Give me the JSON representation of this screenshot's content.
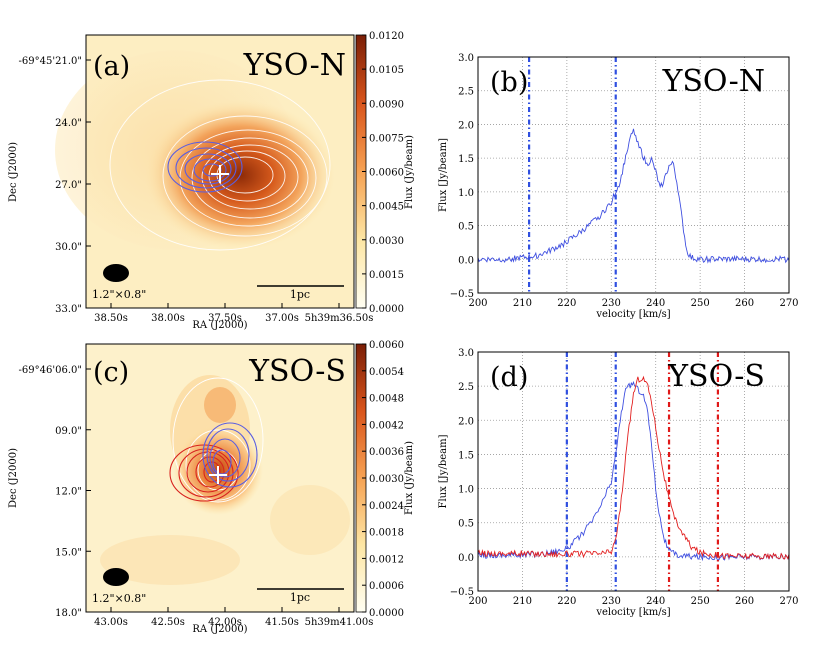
{
  "chart_data": [
    {
      "type": "heatmap",
      "panel": "(a)",
      "label": "YSO-N",
      "colorbar": {
        "label": "Flux (Jy/beam)",
        "ticks": [
          "0.0000",
          "0.0015",
          "0.0030",
          "0.0045",
          "0.0060",
          "0.0075",
          "0.0090",
          "0.0105",
          "0.0120"
        ]
      },
      "xlabel": "RA (J2000)",
      "ylabel": "Dec (J2000)",
      "xticks": [
        "38.50s",
        "38.00s",
        "37.50s",
        "37.00s",
        "5h39m36.50s"
      ],
      "yticks": [
        "-69°45'21.0\"",
        "24.0\"",
        "27.0\"",
        "30.0\"",
        "33.0\""
      ],
      "beam": "1.2\"×0.8\"",
      "scalebar": "1pc"
    },
    {
      "type": "line",
      "panel": "(b)",
      "label": "YSO-N",
      "xlabel": "velocity [km/s]",
      "ylabel": "Flux [Jy/beam]",
      "xlim": [
        200,
        270
      ],
      "ylim": [
        -0.5,
        3.0
      ],
      "xticks": [
        "200",
        "210",
        "220",
        "230",
        "240",
        "250",
        "260",
        "270"
      ],
      "yticks": [
        "-0.5",
        "0.0",
        "0.5",
        "1.0",
        "1.5",
        "2.0",
        "2.5",
        "3.0"
      ],
      "series": [
        {
          "name": "blue",
          "color": "#3f4fe0",
          "x": [
            200,
            205,
            210,
            213,
            216,
            219,
            222,
            225,
            228,
            230,
            232,
            233,
            234,
            235,
            236,
            237,
            238,
            239,
            240,
            241,
            242,
            243,
            244,
            245,
            246,
            247,
            248,
            250,
            255,
            260,
            265,
            270
          ],
          "y": [
            0.0,
            0.0,
            0.02,
            0.05,
            0.12,
            0.22,
            0.35,
            0.5,
            0.68,
            0.85,
            1.15,
            1.45,
            1.75,
            1.9,
            1.75,
            1.55,
            1.4,
            1.48,
            1.3,
            1.05,
            1.2,
            1.38,
            1.42,
            1.05,
            0.55,
            0.12,
            0.02,
            0.0,
            0.0,
            0.0,
            0.0,
            0.0
          ]
        }
      ],
      "vlines": [
        {
          "x": 211.5,
          "color": "#2f4fe0"
        },
        {
          "x": 231,
          "color": "#2f4fe0"
        }
      ]
    },
    {
      "type": "heatmap",
      "panel": "(c)",
      "label": "YSO-S",
      "colorbar": {
        "label": "Flux (Jy/beam)",
        "ticks": [
          "0.0000",
          "0.0006",
          "0.0012",
          "0.0018",
          "0.0024",
          "0.0030",
          "0.0036",
          "0.0042",
          "0.0048",
          "0.0054",
          "0.0060"
        ]
      },
      "xlabel": "RA (J2000)",
      "ylabel": "Dec (J2000)",
      "xticks": [
        "43.00s",
        "42.50s",
        "42.00s",
        "41.50s",
        "5h39m41.00s"
      ],
      "yticks": [
        "-69°46'06.0\"",
        "09.0\"",
        "12.0\"",
        "15.0\"",
        "18.0\""
      ],
      "beam": "1.2\"×0.8\"",
      "scalebar": "1pc"
    },
    {
      "type": "line",
      "panel": "(d)",
      "label": "YSO-S",
      "xlabel": "velocity [km/s]",
      "ylabel": "Flux [Jy/beam]",
      "xlim": [
        200,
        270
      ],
      "ylim": [
        -0.5,
        3.0
      ],
      "xticks": [
        "200",
        "210",
        "220",
        "230",
        "240",
        "250",
        "260",
        "270"
      ],
      "yticks": [
        "-0.5",
        "0.0",
        "0.5",
        "1.0",
        "1.5",
        "2.0",
        "2.5",
        "3.0"
      ],
      "series": [
        {
          "name": "blue",
          "color": "#3f4fe0",
          "x": [
            200,
            210,
            215,
            220,
            223,
            226,
            228,
            230,
            231,
            232,
            233,
            234,
            235,
            236,
            237,
            238,
            239,
            240,
            241,
            242,
            243,
            245,
            250,
            260,
            270
          ],
          "y": [
            0.02,
            0.03,
            0.05,
            0.12,
            0.3,
            0.55,
            0.8,
            1.1,
            1.5,
            2.0,
            2.4,
            2.5,
            2.55,
            2.45,
            2.4,
            2.2,
            1.7,
            1.0,
            0.55,
            0.25,
            0.08,
            0.02,
            0.0,
            0.0,
            0.0
          ]
        },
        {
          "name": "red",
          "color": "#e22020",
          "x": [
            200,
            210,
            220,
            228,
            230,
            231,
            232,
            233,
            234,
            235,
            236,
            237,
            238,
            239,
            240,
            241,
            242,
            243,
            244,
            246,
            248,
            250,
            255,
            260,
            270
          ],
          "y": [
            0.05,
            0.05,
            0.04,
            0.05,
            0.08,
            0.25,
            0.7,
            1.3,
            1.9,
            2.4,
            2.6,
            2.62,
            2.55,
            2.3,
            1.9,
            1.5,
            1.15,
            0.85,
            0.6,
            0.35,
            0.15,
            0.06,
            0.02,
            0.01,
            0.0
          ]
        }
      ],
      "vlines": [
        {
          "x": 220,
          "color": "#2f4fe0"
        },
        {
          "x": 231,
          "color": "#2f4fe0"
        },
        {
          "x": 243,
          "color": "#e01818"
        },
        {
          "x": 254,
          "color": "#e01818"
        }
      ]
    }
  ]
}
